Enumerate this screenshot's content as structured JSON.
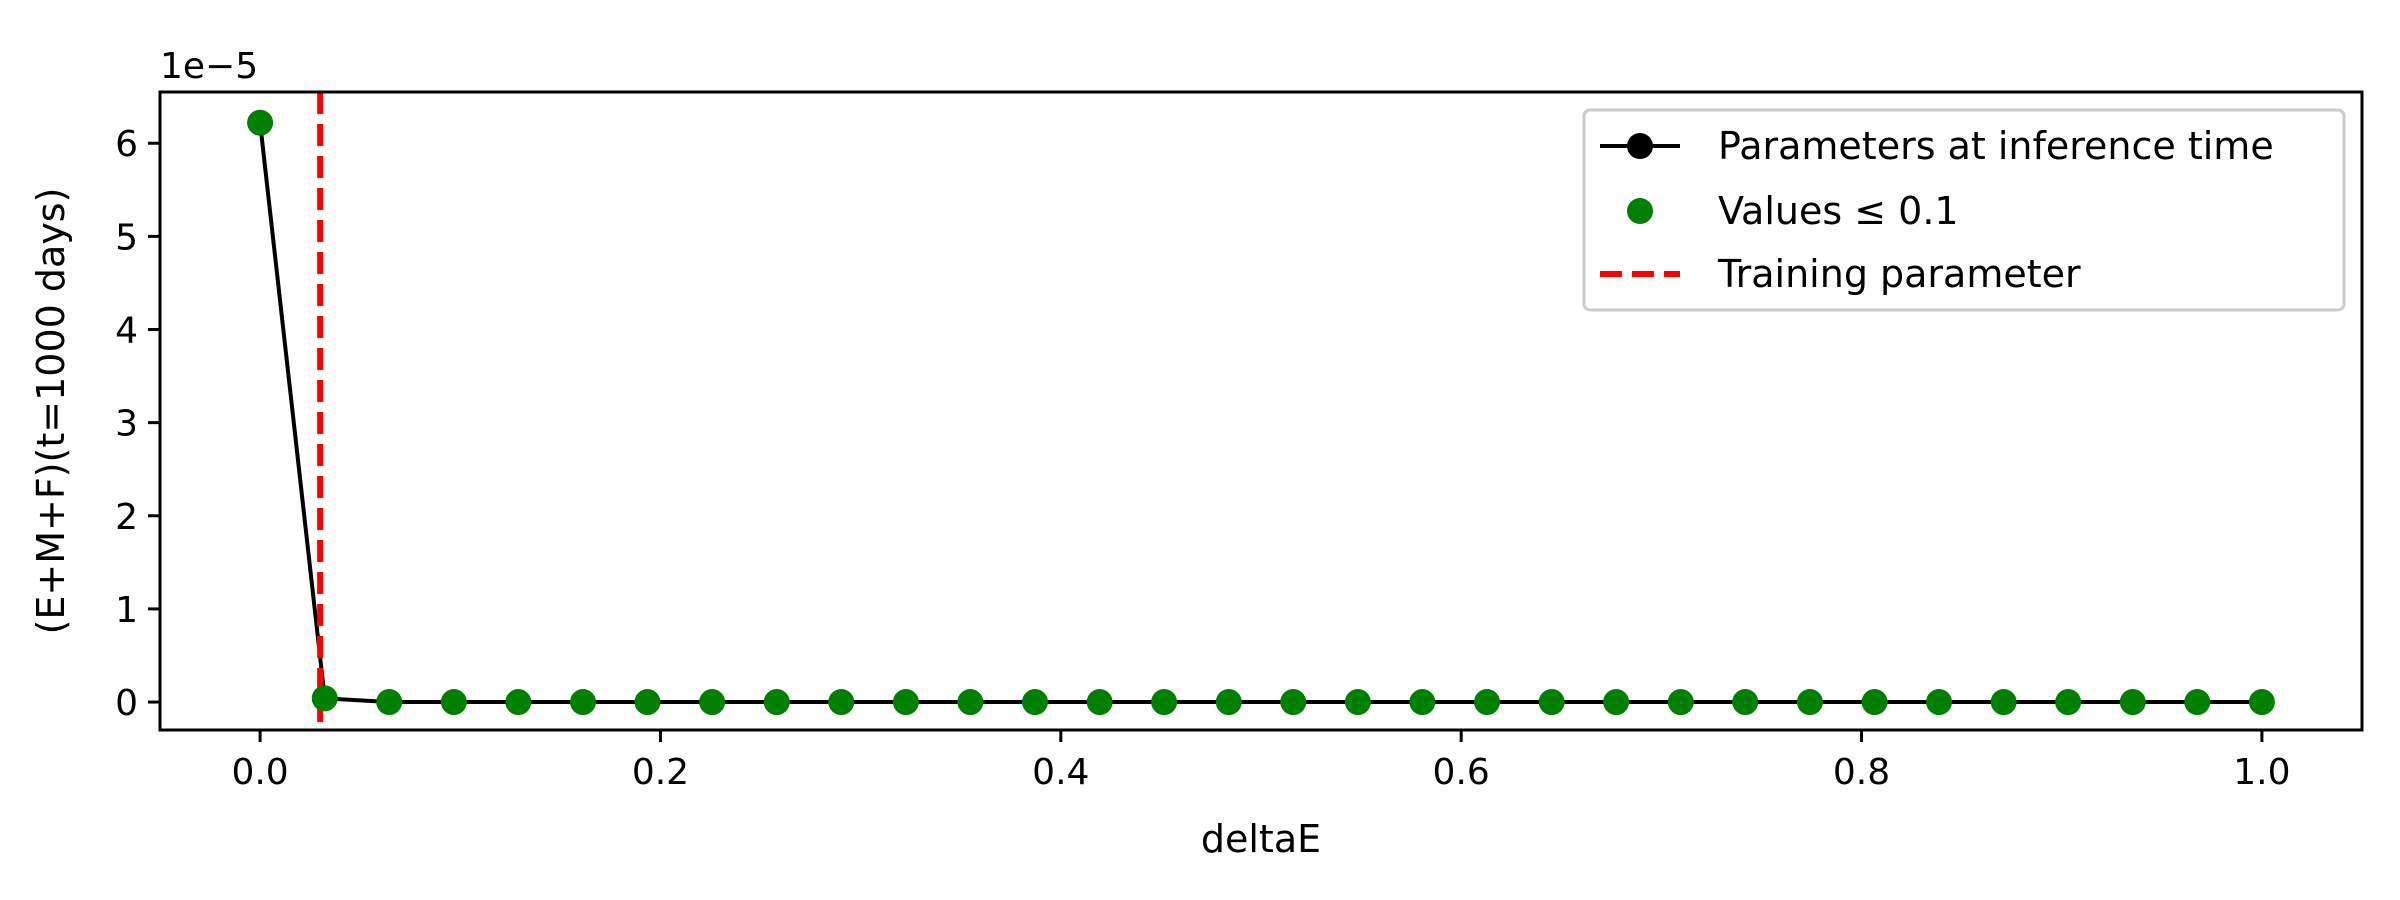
{
  "chart_data": {
    "type": "line",
    "title": "",
    "xlabel": "deltaE",
    "ylabel": "(E+M+F)(t=1000 days)",
    "y_scale_label": "1e−5",
    "xlim": [
      -0.05,
      1.05
    ],
    "ylim": [
      -0.3,
      6.55
    ],
    "x_ticks": [
      0.0,
      0.2,
      0.4,
      0.6,
      0.8,
      1.0
    ],
    "x_tick_labels": [
      "0.0",
      "0.2",
      "0.4",
      "0.6",
      "0.8",
      "1.0"
    ],
    "y_ticks": [
      0,
      1,
      2,
      3,
      4,
      5,
      6
    ],
    "y_tick_labels": [
      "0",
      "1",
      "2",
      "3",
      "4",
      "5",
      "6"
    ],
    "grid": false,
    "legend_position": "top-right",
    "x": [
      0.0,
      0.0323,
      0.0645,
      0.0968,
      0.129,
      0.1613,
      0.1935,
      0.2258,
      0.2581,
      0.2903,
      0.3226,
      0.3548,
      0.3871,
      0.4194,
      0.4516,
      0.4839,
      0.5161,
      0.5484,
      0.5806,
      0.6129,
      0.6452,
      0.6774,
      0.7097,
      0.7419,
      0.7742,
      0.8065,
      0.8387,
      0.871,
      0.9032,
      0.9355,
      0.9677,
      1.0
    ],
    "series": [
      {
        "name": "Parameters at inference time",
        "kind": "line-marker",
        "color": "#000000",
        "values": [
          6.22,
          0.04,
          0,
          0,
          0,
          0,
          0,
          0,
          0,
          0,
          0,
          0,
          0,
          0,
          0,
          0,
          0,
          0,
          0,
          0,
          0,
          0,
          0,
          0,
          0,
          0,
          0,
          0,
          0,
          0,
          0,
          0
        ]
      },
      {
        "name": "Values ≤ 0.1",
        "kind": "scatter",
        "color": "#008000",
        "values": [
          6.22,
          0.04,
          0,
          0,
          0,
          0,
          0,
          0,
          0,
          0,
          0,
          0,
          0,
          0,
          0,
          0,
          0,
          0,
          0,
          0,
          0,
          0,
          0,
          0,
          0,
          0,
          0,
          0,
          0,
          0,
          0,
          0
        ]
      },
      {
        "name": "Training parameter",
        "kind": "vline",
        "color": "#ff0000",
        "x_value": 0.03
      }
    ]
  }
}
